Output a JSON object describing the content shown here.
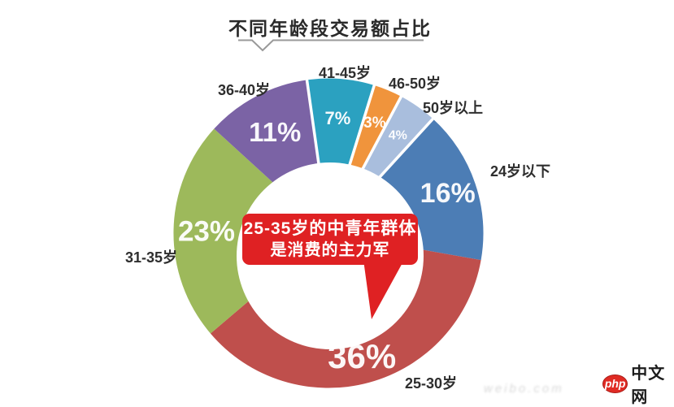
{
  "title": {
    "text": "不同年龄段交易额占比"
  },
  "chart_data": {
    "type": "pie",
    "subtype": "donut",
    "title": "不同年龄段交易额占比",
    "unit": "%",
    "start_angle_deg": -8,
    "direction": "clockwise",
    "legend_position": "labels-around-ring",
    "segments": [
      {
        "label": "41-45岁",
        "value": 7,
        "percent_label": "7%",
        "color": "#2BA1C0",
        "divider_before": true
      },
      {
        "label": "46-50岁",
        "value": 3,
        "percent_label": "3%",
        "color": "#F0943C",
        "divider_before": true
      },
      {
        "label": "50岁以上",
        "value": 4,
        "percent_label": "4%",
        "color": "#A9BEDD",
        "divider_before": true
      },
      {
        "label": "24岁以下",
        "value": 16,
        "percent_label": "16%",
        "color": "#4C7DB5",
        "divider_before": true
      },
      {
        "label": "25-30岁",
        "value": 36,
        "percent_label": "36%",
        "color": "#BF4F4C",
        "divider_before": false
      },
      {
        "label": "31-35岁",
        "value": 23,
        "percent_label": "23%",
        "color": "#9DB95B",
        "divider_before": false
      },
      {
        "label": "36-40岁",
        "value": 11,
        "percent_label": "11%",
        "color": "#7B63A5",
        "divider_before": false
      }
    ]
  },
  "callout": {
    "line1": "25-35岁的中青年群体",
    "line2": "是消费的主力军",
    "color": "#DF2123",
    "text_color": "#FFFFFF"
  },
  "watermark": {
    "brand_icon_text": "php",
    "brand_text": "中文网",
    "icon_color": "#E02B24",
    "faint_text": "weibo.com"
  },
  "colors": {
    "background": "#FFFFFF",
    "title_text": "#2A2A2A",
    "label_text": "#2E2E2E",
    "underline": "#999999"
  }
}
